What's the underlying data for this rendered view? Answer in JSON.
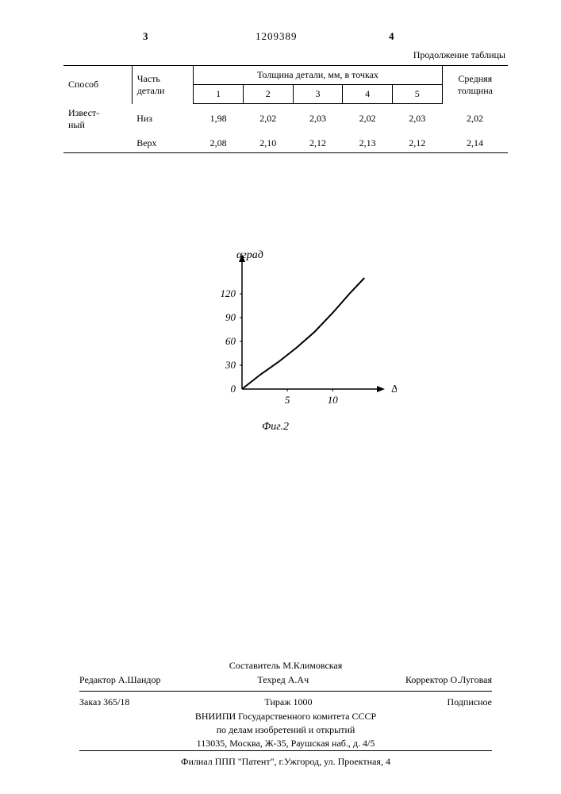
{
  "header": {
    "page_left": "3",
    "doc_number": "1209389",
    "page_right": "4",
    "continuation": "Продолжение таблицы"
  },
  "table": {
    "columns": {
      "sposob": "Способ",
      "part": "Часть детали",
      "thickness_header": "Толщина детали, мм, в точках",
      "avg": "Средняя толщина",
      "points": [
        "1",
        "2",
        "3",
        "4",
        "5"
      ]
    },
    "rows": [
      {
        "sposob": "Извест-\nный",
        "part": "Низ",
        "vals": [
          "1,98",
          "2,02",
          "2,03",
          "2,02",
          "2,03"
        ],
        "avg": "2,02"
      },
      {
        "sposob": "",
        "part": "Верх",
        "vals": [
          "2,08",
          "2,10",
          "2,12",
          "2,13",
          "2,12"
        ],
        "avg": "2,14"
      }
    ]
  },
  "chart": {
    "type": "line",
    "y_axis_label": "αград",
    "x_axis_label": "Δ",
    "caption": "Фиг.2",
    "y_ticks": [
      0,
      30,
      60,
      90,
      120
    ],
    "x_ticks": [
      5,
      10
    ],
    "x_range": [
      0,
      14
    ],
    "y_range": [
      0,
      150
    ],
    "curve_points": [
      [
        0,
        0
      ],
      [
        2,
        18
      ],
      [
        4,
        34
      ],
      [
        6,
        52
      ],
      [
        8,
        72
      ],
      [
        10,
        96
      ],
      [
        12,
        122
      ],
      [
        13.5,
        140
      ]
    ],
    "line_color": "#000000",
    "line_width": 2,
    "axis_color": "#000000",
    "tick_fontsize": 13,
    "label_fontsize": 14
  },
  "footer": {
    "compiler_label": "Составитель",
    "compiler_name": "М.Климовская",
    "editor_label": "Редактор",
    "editor_name": "А.Шандор",
    "techred_label": "Техред",
    "techred_name": "А.Ач",
    "corrector_label": "Корректор",
    "corrector_name": "О.Луговая",
    "order_label": "Заказ",
    "order_number": "365/18",
    "tirazh_label": "Тираж",
    "tirazh_value": "1000",
    "subscription": "Подписное",
    "org1": "ВНИИПИ Государственного комитета СССР",
    "org2": "по делам изобретений и открытий",
    "address": "113035, Москва, Ж-35, Раушская наб., д. 4/5",
    "branch": "Филиал ППП \"Патент\", г.Ужгород, ул. Проектная, 4"
  }
}
